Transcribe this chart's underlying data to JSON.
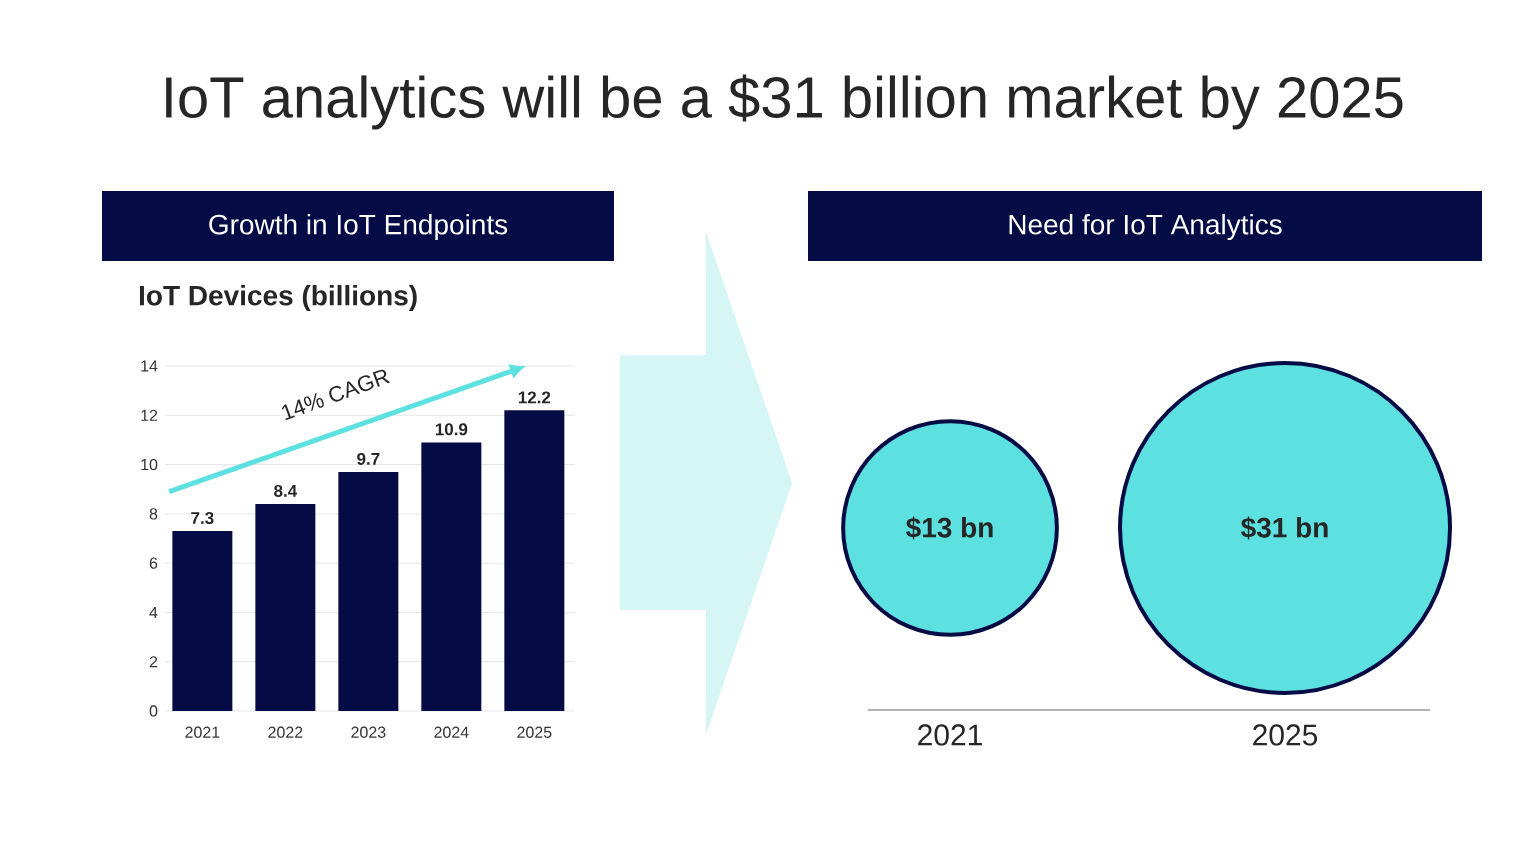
{
  "chart_data": [
    {
      "type": "other",
      "title": "IoT analytics will be a $31 billion market by 2025"
    },
    {
      "type": "bar",
      "title": "Growth in IoT Endpoints",
      "subtitle": "IoT Devices (billions)",
      "categories": [
        "2021",
        "2022",
        "2023",
        "2024",
        "2025"
      ],
      "values": [
        7.3,
        8.4,
        9.7,
        10.9,
        12.2
      ],
      "color": "#050c45",
      "ylim": [
        0,
        14
      ],
      "yticks": [
        0,
        2,
        4,
        6,
        8,
        10,
        12,
        14
      ],
      "grid": "y",
      "data_labels": true,
      "annotations": [
        "14% CAGR"
      ]
    },
    {
      "type": "other",
      "title": "Need for IoT Analytics",
      "categories": [
        "2021",
        "2025"
      ],
      "values": [
        13,
        31
      ],
      "value_labels": [
        "$13 bn",
        "$31 bn"
      ],
      "color": "#5ce1e0"
    }
  ]
}
